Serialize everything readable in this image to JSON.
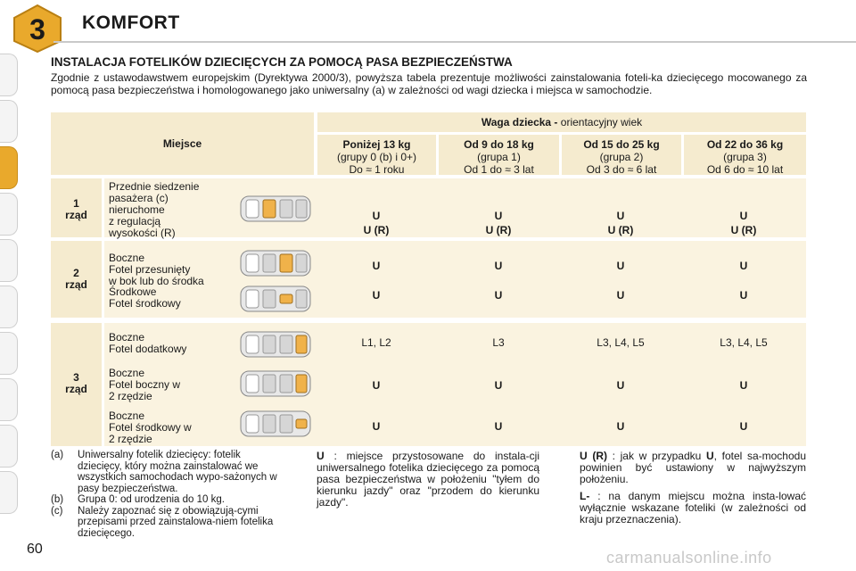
{
  "header": {
    "chapter_number": "3",
    "chapter_title": "KOMFORT"
  },
  "section_title": "INSTALACJA FOTELIKÓW DZIECIĘCYCH ZA POMOCĄ PASA BEZPIECZEŃSTWA",
  "intro": "Zgodnie z ustawodawstwem europejskim (Dyrektywa 2000/3), powyższa tabela prezentuje możliwości zainstalowania foteli-ka dziecięcego mocowanego za pomocą pasa bezpieczeństwa i homologowanego jako uniwersalny (a) w zależności od wagi dziecka i miejsca w samochodzie.",
  "table": {
    "place_header": "Miejsce",
    "weight_header_bold": "Waga dziecka -",
    "weight_header_rest": " orientacyjny wiek",
    "columns": [
      {
        "title": "Poniżej 13 kg",
        "line1": "(grupy 0 (b) i 0+)",
        "line2": "Do ≈ 1 roku"
      },
      {
        "title": "Od 9 do 18 kg",
        "line1": "(grupa 1)",
        "line2": "Od 1 do ≈ 3 lat"
      },
      {
        "title": "Od 15 do 25 kg",
        "line1": "(grupa 2)",
        "line2": "Od 3 do ≈ 6 lat"
      },
      {
        "title": "Od 22 do 36 kg",
        "line1": "(grupa 3)",
        "line2": "Od 6 do ≈ 10 lat"
      }
    ],
    "rows": [
      {
        "label_num": "1",
        "label_word": "rząd",
        "seats": [
          {
            "desc": "Przednie siedzenie\npasażera (c)\nnieruchome\nz regulacją\nwysokości (R)",
            "values": [
              "U\nU (R)",
              "U\nU (R)",
              "U\nU (R)",
              "U\nU (R)"
            ]
          }
        ]
      },
      {
        "label_num": "2",
        "label_word": "rząd",
        "seats": [
          {
            "desc": "Boczne\nFotel przesunięty\nw bok lub do środka",
            "values": [
              "U",
              "U",
              "U",
              "U"
            ]
          },
          {
            "desc": "Środkowe\nFotel środkowy",
            "values": [
              "U",
              "U",
              "U",
              "U"
            ]
          }
        ]
      },
      {
        "label_num": "3",
        "label_word": "rząd",
        "seats": [
          {
            "desc": "Boczne\nFotel dodatkowy",
            "values": [
              "L1, L2",
              "L3",
              "L3, L4, L5",
              "L3, L4, L5"
            ]
          },
          {
            "desc": "Boczne\nFotel boczny w\n2 rzędzie",
            "values": [
              "U",
              "U",
              "U",
              "U"
            ]
          },
          {
            "desc": "Boczne\nFotel środkowy w\n2 rzędzie",
            "values": [
              "U",
              "U",
              "U",
              "U"
            ]
          }
        ]
      }
    ]
  },
  "notes": [
    {
      "key": "(a)",
      "text": "Uniwersalny fotelik dziecięcy: fotelik dziecięcy, który można zainstalować we wszystkich samochodach wypo-sażonych w pasy bezpieczeństwa."
    },
    {
      "key": "(b)",
      "text": "Grupa 0: od urodzenia do 10 kg."
    },
    {
      "key": "(c)",
      "text": "Należy zapoznać się z obowiązują-cymi przepisami przed zainstalowa-niem fotelika dziecięcego."
    }
  ],
  "legend": {
    "u_key": "U",
    "u_text": " : miejsce przystosowane do instala-cji uniwersalnego fotelika dziecięcego za pomocą pasa bezpieczeństwa w położeniu \"tyłem do kierunku jazdy\" oraz \"przodem do kierunku jazdy\".",
    "ur_key": "U (R)",
    "ur_mid": " : jak w przypadku ",
    "ur_key2": "U",
    "ur_text": ", fotel sa-mochodu powinien być ustawiony w najwyższym położeniu.",
    "l_key": "L-",
    "l_text": " : na danym miejscu można insta-lować wyłącznie wskazane foteliki (w zależności od kraju przeznaczenia)."
  },
  "page_number": "60",
  "watermark": "carmanualsonline.info",
  "colors": {
    "accent": "#e9a92c",
    "table_bg": "#f5ebcf"
  }
}
